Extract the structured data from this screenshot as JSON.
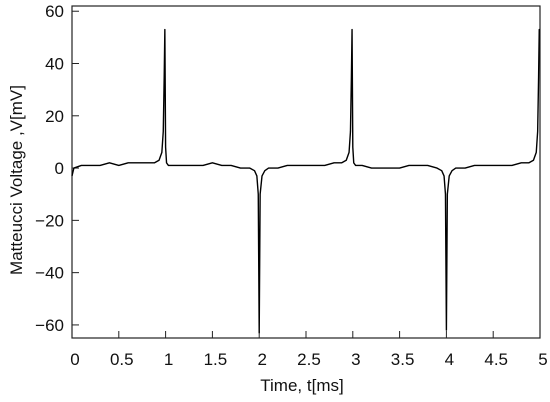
{
  "chart_data": {
    "type": "line",
    "xlabel": "Time, t[ms]",
    "ylabel": "Matteucci Voltage ,V[mV]",
    "xlim": [
      0,
      5
    ],
    "ylim": [
      -65,
      62
    ],
    "x_ticks": [
      0,
      0.5,
      1,
      1.5,
      2,
      2.5,
      3,
      3.5,
      4,
      4.5,
      5
    ],
    "x_tick_labels": [
      "0",
      "0.5",
      "1",
      "1.5",
      "2",
      "2.5",
      "3",
      "3.5",
      "4",
      "4.5",
      "5"
    ],
    "y_ticks": [
      60,
      40,
      20,
      0,
      -20,
      -40,
      -60
    ],
    "y_tick_labels": [
      "60",
      "40",
      "20",
      "0",
      "−20",
      "−40",
      "−60"
    ],
    "grid": false,
    "line_color": "#000000",
    "series": [
      {
        "x": [
          0.0,
          0.02,
          0.1,
          0.2,
          0.3,
          0.4,
          0.5,
          0.6,
          0.7,
          0.8,
          0.88,
          0.93,
          0.96,
          0.975,
          0.985,
          0.992,
          1.0,
          1.01,
          1.03,
          1.06,
          1.1,
          1.2,
          1.3,
          1.4,
          1.5,
          1.6,
          1.7,
          1.8,
          1.9,
          1.95,
          1.975,
          1.99,
          2.0,
          2.01,
          2.03,
          2.06,
          2.1,
          2.2,
          2.3,
          2.4,
          2.5,
          2.6,
          2.7,
          2.8,
          2.88,
          2.93,
          2.96,
          2.975,
          2.985,
          2.992,
          3.0,
          3.01,
          3.03,
          3.06,
          3.1,
          3.2,
          3.3,
          3.4,
          3.5,
          3.6,
          3.7,
          3.8,
          3.9,
          3.95,
          3.975,
          3.99,
          4.0,
          4.01,
          4.03,
          4.06,
          4.1,
          4.2,
          4.3,
          4.4,
          4.5,
          4.6,
          4.7,
          4.8,
          4.88,
          4.93,
          4.96,
          4.975,
          4.985,
          4.992,
          5.0
        ],
        "y": [
          -3,
          0,
          1,
          1,
          1,
          2,
          1,
          2,
          2,
          2,
          2,
          3,
          6,
          14,
          35,
          53,
          8,
          2,
          1,
          1,
          1,
          1,
          1,
          1,
          2,
          1,
          1,
          0,
          0,
          -1,
          -3,
          -10,
          -63,
          -10,
          -3,
          -1,
          0,
          0,
          1,
          1,
          1,
          1,
          1,
          2,
          2,
          3,
          6,
          14,
          35,
          53,
          8,
          2,
          1,
          1,
          1,
          0,
          0,
          0,
          0,
          1,
          1,
          1,
          0,
          -1,
          -3,
          -10,
          -62,
          -10,
          -3,
          -1,
          0,
          0,
          1,
          1,
          1,
          1,
          1,
          2,
          2,
          3,
          6,
          14,
          35,
          53,
          53
        ]
      }
    ]
  }
}
